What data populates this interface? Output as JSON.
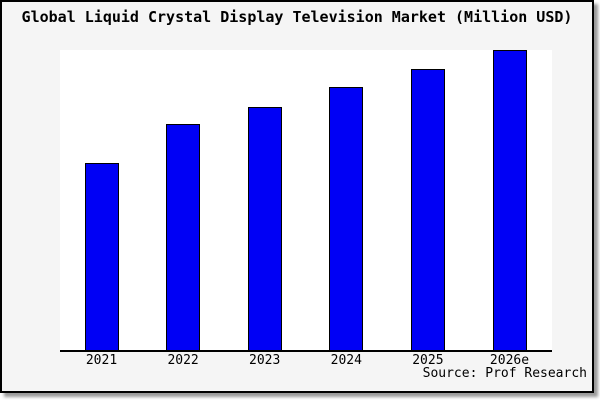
{
  "figure": {
    "title": "Global Liquid Crystal Display Television Market (Million USD)",
    "source_note": "Source: Prof Research"
  },
  "chart_data": {
    "type": "bar",
    "title": "Global Liquid Crystal Display Television Market (Million USD)",
    "categories": [
      "2021",
      "2022",
      "2023",
      "2024",
      "2025",
      "2026e"
    ],
    "values": [
      187,
      226,
      243,
      263,
      281,
      300
    ],
    "value_scale_note": "no numeric y-axis ticks are shown; values are relative bar heights in screen pixels (baseline 0 at x-axis)",
    "xlabel": "",
    "ylabel": "",
    "ylim": [
      0,
      300
    ],
    "grid": false,
    "legend": false,
    "source_note": "Source: Prof Research",
    "colors": {
      "bar_fill": "#0000f5",
      "bar_border": "#000000",
      "figure_background": "#f5f5f5",
      "plot_background": "#ffffff",
      "axis_line": "#000000",
      "figure_border": "#000000",
      "text": "#000000"
    }
  }
}
